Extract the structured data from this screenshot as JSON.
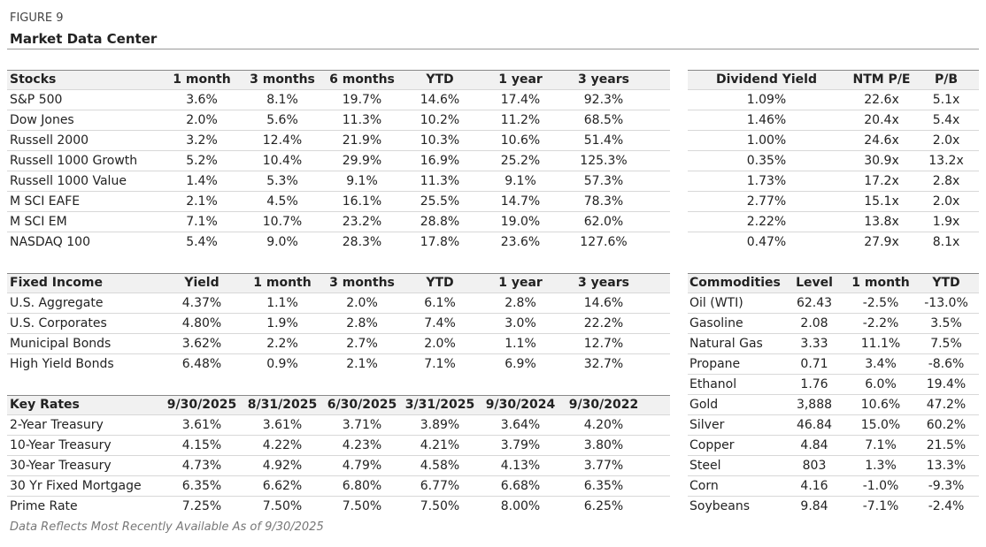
{
  "header": {
    "figure": "FIGURE 9",
    "title": "Market Data Center"
  },
  "tables": [
    {
      "columns": [
        "Stocks",
        "1 month",
        "3 months",
        "6 months",
        "YTD",
        "1 year",
        "3 years"
      ],
      "rows": [
        [
          "S&P 500",
          "3.6%",
          "8.1%",
          "19.7%",
          "14.6%",
          "17.4%",
          "92.3%"
        ],
        [
          "Dow Jones",
          "2.0%",
          "5.6%",
          "11.3%",
          "10.2%",
          "11.2%",
          "68.5%"
        ],
        [
          "Russell 2000",
          "3.2%",
          "12.4%",
          "21.9%",
          "10.3%",
          "10.6%",
          "51.4%"
        ],
        [
          "Russell 1000 Growth",
          "5.2%",
          "10.4%",
          "29.9%",
          "16.9%",
          "25.2%",
          "125.3%"
        ],
        [
          "Russell 1000 Value",
          "1.4%",
          "5.3%",
          "9.1%",
          "11.3%",
          "9.1%",
          "57.3%"
        ],
        [
          "M SCI EAFE",
          "2.1%",
          "4.5%",
          "16.1%",
          "25.5%",
          "14.7%",
          "78.3%"
        ],
        [
          "M SCI EM",
          "7.1%",
          "10.7%",
          "23.2%",
          "28.8%",
          "19.0%",
          "62.0%"
        ],
        [
          "NASDAQ 100",
          "5.4%",
          "9.0%",
          "28.3%",
          "17.8%",
          "23.6%",
          "127.6%"
        ]
      ]
    },
    {
      "columns": [
        "Dividend Yield",
        "NTM P/E",
        "P/B"
      ],
      "rows": [
        [
          "1.09%",
          "22.6x",
          "5.1x"
        ],
        [
          "1.46%",
          "20.4x",
          "5.4x"
        ],
        [
          "1.00%",
          "24.6x",
          "2.0x"
        ],
        [
          "0.35%",
          "30.9x",
          "13.2x"
        ],
        [
          "1.73%",
          "17.2x",
          "2.8x"
        ],
        [
          "2.77%",
          "15.1x",
          "2.0x"
        ],
        [
          "2.22%",
          "13.8x",
          "1.9x"
        ],
        [
          "0.47%",
          "27.9x",
          "8.1x"
        ]
      ]
    },
    {
      "columns": [
        "Fixed Income",
        "Yield",
        "1 month",
        "3 months",
        "YTD",
        "1 year",
        "3 years"
      ],
      "rows": [
        [
          "U.S. Aggregate",
          "4.37%",
          "1.1%",
          "2.0%",
          "6.1%",
          "2.8%",
          "14.6%"
        ],
        [
          "U.S. Corporates",
          "4.80%",
          "1.9%",
          "2.8%",
          "7.4%",
          "3.0%",
          "22.2%"
        ],
        [
          "Municipal Bonds",
          "3.62%",
          "2.2%",
          "2.7%",
          "2.0%",
          "1.1%",
          "12.7%"
        ],
        [
          "High Yield Bonds",
          "6.48%",
          "0.9%",
          "2.1%",
          "7.1%",
          "6.9%",
          "32.7%"
        ]
      ]
    },
    {
      "columns": [
        "Key Rates",
        "9/30/2025",
        "8/31/2025",
        "6/30/2025",
        "3/31/2025",
        "9/30/2024",
        "9/30/2022"
      ],
      "rows": [
        [
          "2-Year Treasury",
          "3.61%",
          "3.61%",
          "3.71%",
          "3.89%",
          "3.64%",
          "4.20%"
        ],
        [
          "10-Year Treasury",
          "4.15%",
          "4.22%",
          "4.23%",
          "4.21%",
          "3.79%",
          "3.80%"
        ],
        [
          "30-Year Treasury",
          "4.73%",
          "4.92%",
          "4.79%",
          "4.58%",
          "4.13%",
          "3.77%"
        ],
        [
          "30 Yr Fixed Mortgage",
          "6.35%",
          "6.62%",
          "6.80%",
          "6.77%",
          "6.68%",
          "6.35%"
        ],
        [
          "Prime Rate",
          "7.25%",
          "7.50%",
          "7.50%",
          "7.50%",
          "8.00%",
          "6.25%"
        ]
      ]
    },
    {
      "columns": [
        "Commodities",
        "Level",
        "1 month",
        "YTD"
      ],
      "rows": [
        [
          "Oil (WTI)",
          "62.43",
          "-2.5%",
          "-13.0%"
        ],
        [
          "Gasoline",
          "2.08",
          "-2.2%",
          "3.5%"
        ],
        [
          "Natural Gas",
          "3.33",
          "11.1%",
          "7.5%"
        ],
        [
          "Propane",
          "0.71",
          "3.4%",
          "-8.6%"
        ],
        [
          "Ethanol",
          "1.76",
          "6.0%",
          "19.4%"
        ],
        [
          "Gold",
          "3,888",
          "10.6%",
          "47.2%"
        ],
        [
          "Silver",
          "46.84",
          "15.0%",
          "60.2%"
        ],
        [
          "Copper",
          "4.84",
          "7.1%",
          "21.5%"
        ],
        [
          "Steel",
          "803",
          "1.3%",
          "13.3%"
        ],
        [
          "Corn",
          "4.16",
          "-1.0%",
          "-9.3%"
        ],
        [
          "Soybeans",
          "9.84",
          "-7.1%",
          "-2.4%"
        ]
      ]
    }
  ],
  "footer": "Data Reflects Most Recently Available As of 9/30/2025"
}
